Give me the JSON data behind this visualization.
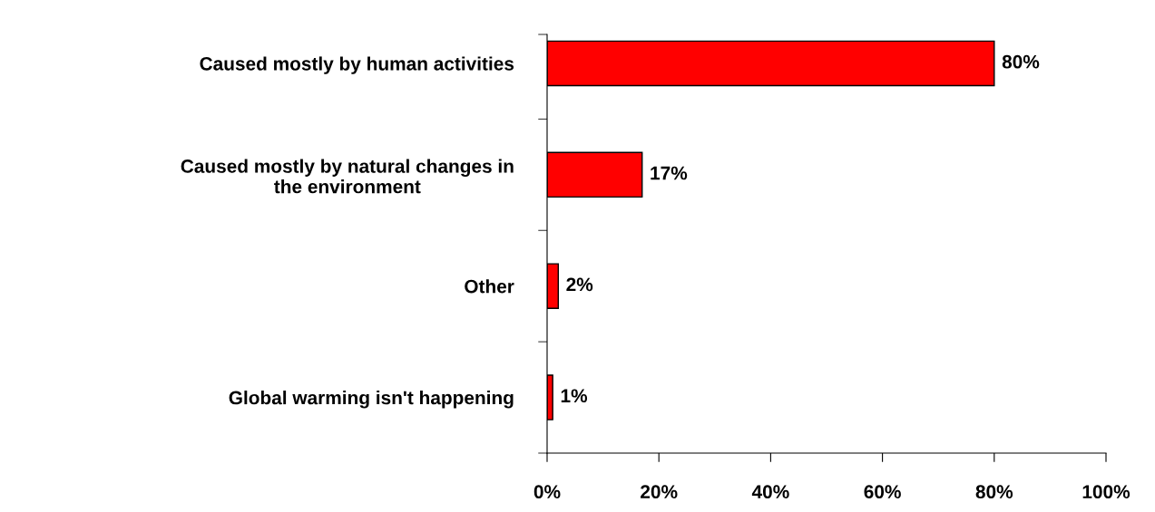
{
  "chart_data": {
    "type": "bar",
    "orientation": "horizontal",
    "categories": [
      "Caused mostly by human activities",
      "Caused mostly by natural changes in\nthe environment",
      "Other",
      "Global warming isn't happening"
    ],
    "values": [
      80,
      17,
      2,
      1
    ],
    "value_labels": [
      "80%",
      "17%",
      "2%",
      "1%"
    ],
    "color": "#ff0000",
    "xlim": [
      0,
      100
    ],
    "xticks": [
      {
        "value": 0,
        "label": "0%"
      },
      {
        "value": 20,
        "label": "20%"
      },
      {
        "value": 40,
        "label": "40%"
      },
      {
        "value": 60,
        "label": "60%"
      },
      {
        "value": 80,
        "label": "80%"
      },
      {
        "value": 100,
        "label": "100%"
      }
    ],
    "grid": false,
    "legend": false
  }
}
